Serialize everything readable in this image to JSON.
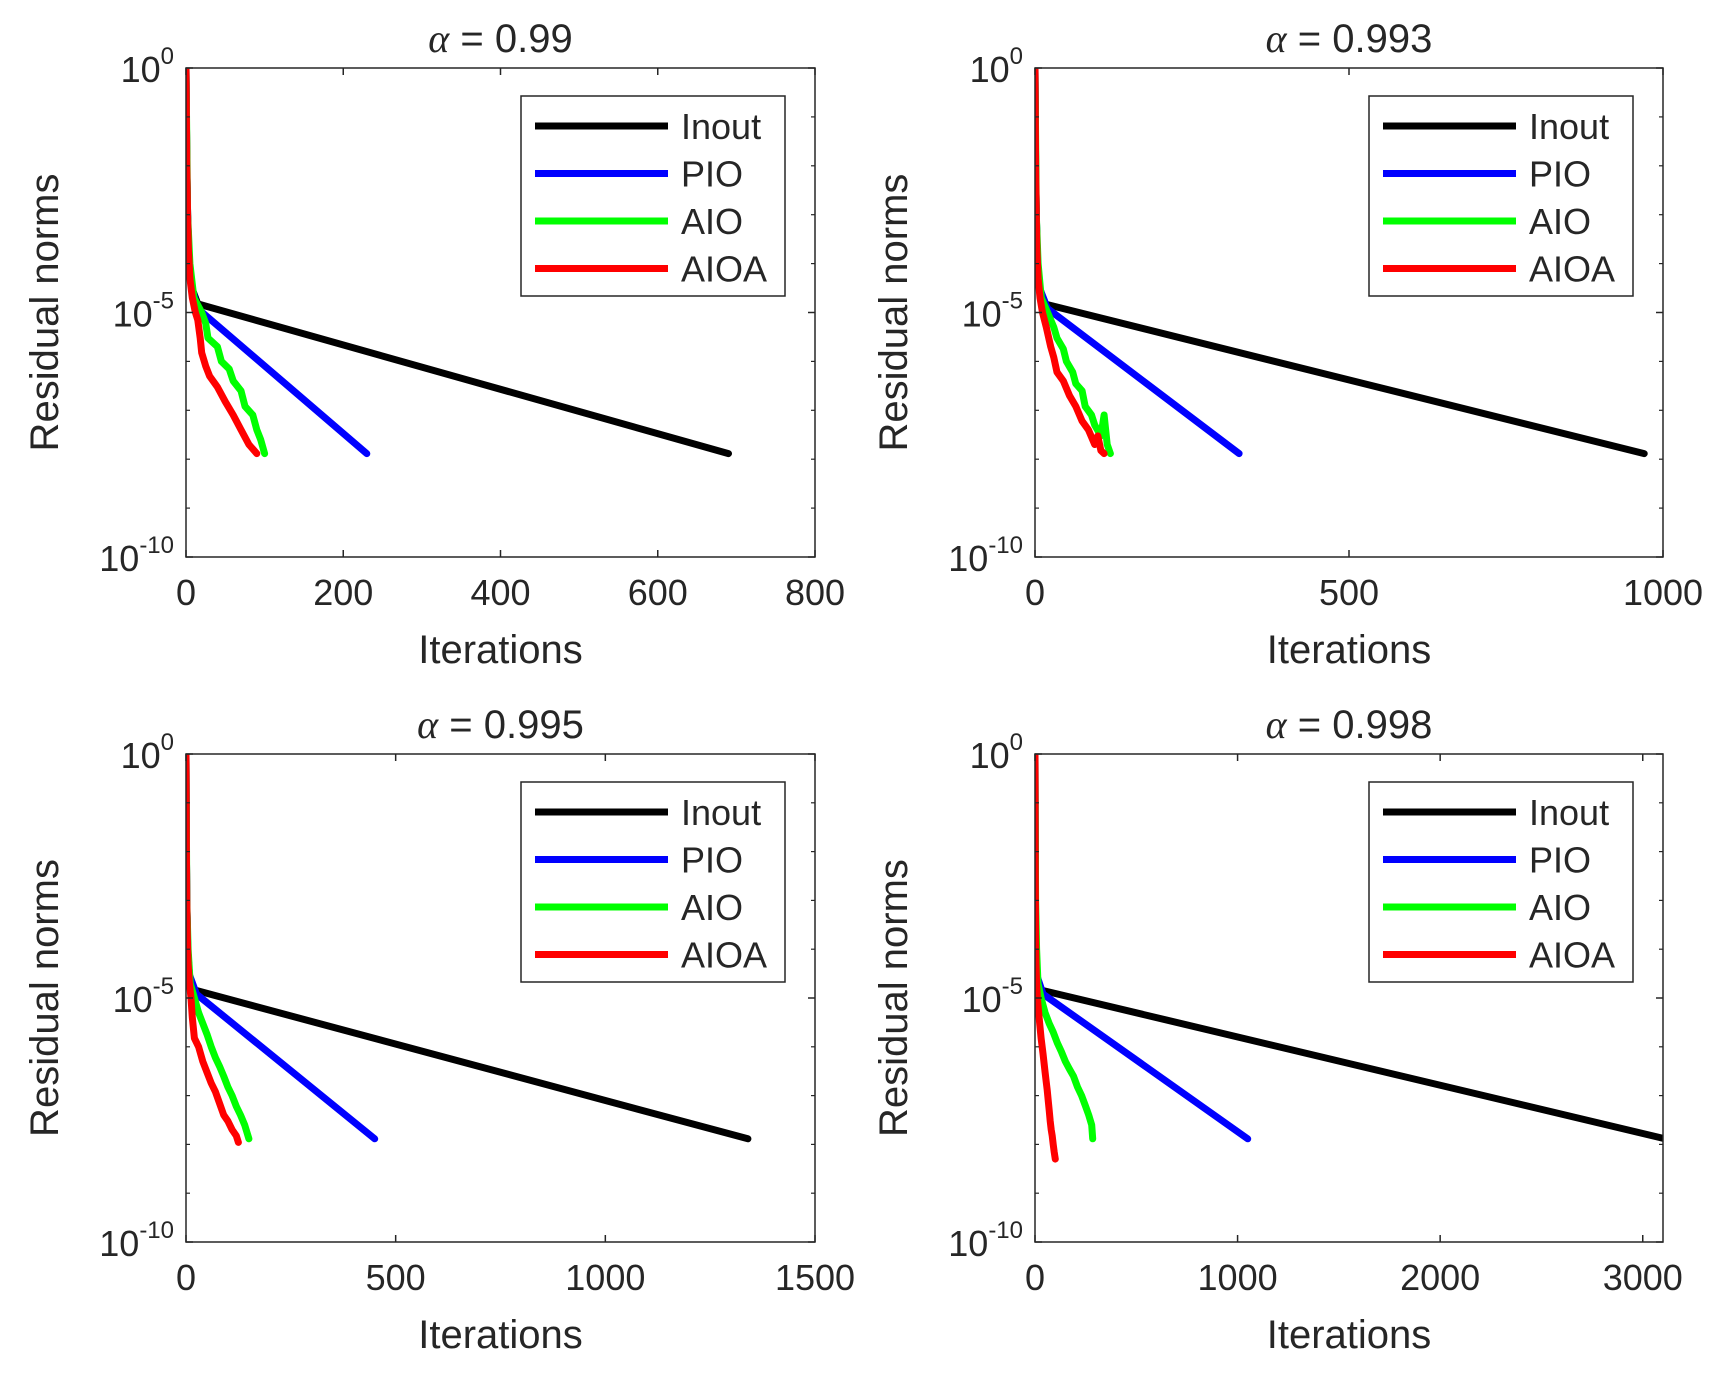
{
  "figure": {
    "title_prefix": "α",
    "title_eq": " = ",
    "series_colors": {
      "Inout": "#000000",
      "PIO": "#0000ff",
      "AIO": "#00ff00",
      "AIOA": "#ff0000"
    }
  },
  "chart_data": [
    {
      "type": "line",
      "title": "α = 0.99",
      "alpha_value": "0.99",
      "xlabel": "Iterations",
      "ylabel": "Residual norms",
      "yscale": "log",
      "xlim": [
        0,
        800
      ],
      "ylim": [
        1e-10,
        1
      ],
      "xticks": [
        0,
        200,
        400,
        600,
        800
      ],
      "xtick_labels": [
        "0",
        "200",
        "400",
        "600",
        "800"
      ],
      "ytick_labels": [
        {
          "base": "10",
          "exp": "0"
        },
        {
          "base": "10",
          "exp": "-5"
        },
        {
          "base": "10",
          "exp": "-10"
        }
      ],
      "legend": [
        "Inout",
        "PIO",
        "AIO",
        "AIOA"
      ],
      "legend_location": "top-right",
      "grid": false,
      "series": [
        {
          "name": "Inout",
          "x": [
            0,
            1,
            2,
            4,
            8,
            15,
            690
          ],
          "y": [
            1,
            0.01,
            0.001,
            0.0001,
            3e-05,
            1.5e-05,
            1.3e-08
          ]
        },
        {
          "name": "PIO",
          "x": [
            0,
            1,
            2,
            4,
            8,
            15,
            230
          ],
          "y": [
            1,
            0.01,
            0.001,
            0.0001,
            3e-05,
            1.2e-05,
            1.3e-08
          ]
        },
        {
          "name": "AIO",
          "x": [
            0,
            2,
            5,
            10,
            20,
            25,
            28,
            40,
            45,
            55,
            60,
            70,
            75,
            85,
            90,
            95,
            100
          ],
          "y": [
            1,
            0.001,
            0.0001,
            2e-05,
            1e-05,
            6e-06,
            3e-06,
            2e-06,
            1e-06,
            7e-07,
            4e-07,
            2.5e-07,
            1.2e-07,
            8e-08,
            4e-08,
            2.5e-08,
            1.3e-08
          ]
        },
        {
          "name": "AIOA",
          "x": [
            0,
            1,
            2,
            3,
            5,
            8,
            12,
            15,
            18,
            20,
            25,
            30,
            40,
            50,
            60,
            70,
            80,
            90
          ],
          "y": [
            1,
            0.01,
            0.001,
            0.0002,
            5e-05,
            2e-05,
            1e-05,
            7e-06,
            3e-06,
            1.5e-06,
            8e-07,
            5e-07,
            3e-07,
            1.5e-07,
            8e-08,
            4e-08,
            2e-08,
            1.3e-08
          ]
        }
      ]
    },
    {
      "type": "line",
      "title": "α = 0.993",
      "alpha_value": "0.993",
      "xlabel": "Iterations",
      "ylabel": "Residual norms",
      "yscale": "log",
      "xlim": [
        0,
        1000
      ],
      "ylim": [
        1e-10,
        1
      ],
      "xticks": [
        0,
        500,
        1000
      ],
      "xtick_labels": [
        "0",
        "500",
        "1000"
      ],
      "ytick_labels": [
        {
          "base": "10",
          "exp": "0"
        },
        {
          "base": "10",
          "exp": "-5"
        },
        {
          "base": "10",
          "exp": "-10"
        }
      ],
      "legend": [
        "Inout",
        "PIO",
        "AIO",
        "AIOA"
      ],
      "legend_location": "top-right",
      "grid": false,
      "series": [
        {
          "name": "Inout",
          "x": [
            0,
            1,
            2,
            4,
            8,
            15,
            970
          ],
          "y": [
            1,
            0.01,
            0.001,
            0.0001,
            3e-05,
            1.5e-05,
            1.3e-08
          ]
        },
        {
          "name": "PIO",
          "x": [
            0,
            1,
            2,
            4,
            8,
            20,
            325
          ],
          "y": [
            1,
            0.01,
            0.001,
            0.0001,
            3e-05,
            1.2e-05,
            1.3e-08
          ]
        },
        {
          "name": "AIO",
          "x": [
            0,
            2,
            5,
            10,
            20,
            30,
            35,
            45,
            50,
            60,
            65,
            75,
            80,
            90,
            95,
            105,
            110,
            115,
            120
          ],
          "y": [
            1,
            0.001,
            0.0001,
            2e-05,
            1e-05,
            5e-06,
            3e-06,
            1.8e-06,
            1e-06,
            6e-07,
            3.5e-07,
            2.5e-07,
            1.2e-07,
            8e-08,
            5e-08,
            3e-08,
            8e-08,
            2e-08,
            1.3e-08
          ]
        },
        {
          "name": "AIOA",
          "x": [
            0,
            1,
            2,
            3,
            5,
            8,
            12,
            18,
            25,
            30,
            35,
            45,
            55,
            65,
            75,
            85,
            95,
            100,
            105,
            110
          ],
          "y": [
            1,
            0.01,
            0.001,
            0.0002,
            5e-05,
            2e-05,
            1e-05,
            5e-06,
            2e-06,
            1.2e-06,
            6e-07,
            4e-07,
            2e-07,
            1.2e-07,
            6e-08,
            4e-08,
            2e-08,
            3e-08,
            1.5e-08,
            1.3e-08
          ]
        }
      ]
    },
    {
      "type": "line",
      "title": "α = 0.995",
      "alpha_value": "0.995",
      "xlabel": "Iterations",
      "ylabel": "Residual norms",
      "yscale": "log",
      "xlim": [
        0,
        1500
      ],
      "ylim": [
        1e-10,
        1
      ],
      "xticks": [
        0,
        500,
        1000,
        1500
      ],
      "xtick_labels": [
        "0",
        "500",
        "1000",
        "1500"
      ],
      "ytick_labels": [
        {
          "base": "10",
          "exp": "0"
        },
        {
          "base": "10",
          "exp": "-5"
        },
        {
          "base": "10",
          "exp": "-10"
        }
      ],
      "legend": [
        "Inout",
        "PIO",
        "AIO",
        "AIOA"
      ],
      "legend_location": "top-right",
      "grid": false,
      "series": [
        {
          "name": "Inout",
          "x": [
            0,
            1,
            2,
            4,
            8,
            15,
            1340
          ],
          "y": [
            1,
            0.01,
            0.001,
            0.0001,
            3e-05,
            1.5e-05,
            1.3e-08
          ]
        },
        {
          "name": "PIO",
          "x": [
            0,
            1,
            2,
            4,
            8,
            25,
            450
          ],
          "y": [
            1,
            0.01,
            0.001,
            0.0001,
            3e-05,
            1.2e-05,
            1.3e-08
          ]
        },
        {
          "name": "AIO",
          "x": [
            0,
            2,
            5,
            10,
            20,
            30,
            40,
            50,
            60,
            70,
            80,
            90,
            100,
            110,
            120,
            130,
            140,
            145,
            150
          ],
          "y": [
            1,
            0.001,
            0.0001,
            2e-05,
            1e-05,
            5e-06,
            3e-06,
            1.8e-06,
            1e-06,
            6e-07,
            4e-07,
            2.5e-07,
            1.5e-07,
            1e-07,
            6e-08,
            4e-08,
            2.5e-08,
            1.8e-08,
            1.3e-08
          ]
        },
        {
          "name": "AIOA",
          "x": [
            0,
            1,
            2,
            3,
            5,
            8,
            12,
            15,
            20,
            30,
            40,
            50,
            60,
            70,
            80,
            90,
            100,
            110,
            120,
            125
          ],
          "y": [
            1,
            0.01,
            0.001,
            0.0002,
            5e-05,
            2e-05,
            1e-05,
            4e-06,
            1.5e-06,
            1e-06,
            5e-07,
            3e-07,
            1.8e-07,
            1.2e-07,
            7e-08,
            4e-08,
            3e-08,
            2e-08,
            1.5e-08,
            1.1e-08
          ]
        }
      ]
    },
    {
      "type": "line",
      "title": "α = 0.998",
      "alpha_value": "0.998",
      "xlabel": "Iterations",
      "ylabel": "Residual norms",
      "yscale": "log",
      "xlim": [
        0,
        3100
      ],
      "ylim": [
        1e-10,
        1
      ],
      "xticks": [
        0,
        1000,
        2000,
        3000
      ],
      "xtick_labels": [
        "0",
        "1000",
        "2000",
        "3000"
      ],
      "ytick_labels": [
        {
          "base": "10",
          "exp": "0"
        },
        {
          "base": "10",
          "exp": "-5"
        },
        {
          "base": "10",
          "exp": "-10"
        }
      ],
      "legend": [
        "Inout",
        "PIO",
        "AIO",
        "AIOA"
      ],
      "legend_location": "top-right",
      "grid": false,
      "series": [
        {
          "name": "Inout",
          "x": [
            0,
            1,
            2,
            4,
            8,
            15,
            3110
          ],
          "y": [
            1,
            0.01,
            0.001,
            0.0001,
            3e-05,
            1.5e-05,
            1.3e-08
          ]
        },
        {
          "name": "PIO",
          "x": [
            0,
            1,
            2,
            4,
            8,
            40,
            1050
          ],
          "y": [
            1,
            0.01,
            0.001,
            0.0001,
            3e-05,
            1.2e-05,
            1.3e-08
          ]
        },
        {
          "name": "AIO",
          "x": [
            0,
            3,
            8,
            15,
            30,
            50,
            70,
            90,
            110,
            130,
            150,
            170,
            190,
            210,
            230,
            250,
            265,
            280,
            285
          ],
          "y": [
            1,
            0.001,
            0.0001,
            2e-05,
            1e-05,
            5e-06,
            3e-06,
            2e-06,
            1.2e-06,
            8e-07,
            5e-07,
            3.5e-07,
            2.5e-07,
            1.5e-07,
            1e-07,
            6e-08,
            4e-08,
            2.5e-08,
            1.3e-08
          ]
        },
        {
          "name": "AIOA",
          "x": [
            0,
            1,
            2,
            3,
            5,
            8,
            12,
            20,
            30,
            40,
            50,
            55,
            60,
            65,
            70,
            75,
            80,
            85,
            90,
            95,
            100
          ],
          "y": [
            1,
            0.01,
            0.001,
            0.0002,
            5e-05,
            2e-05,
            1e-05,
            4e-06,
            1.5e-06,
            7e-07,
            3e-07,
            2e-07,
            1.3e-07,
            8e-08,
            5e-08,
            3e-08,
            2e-08,
            1.5e-08,
            1e-08,
            7e-09,
            5e-09
          ]
        }
      ]
    }
  ]
}
